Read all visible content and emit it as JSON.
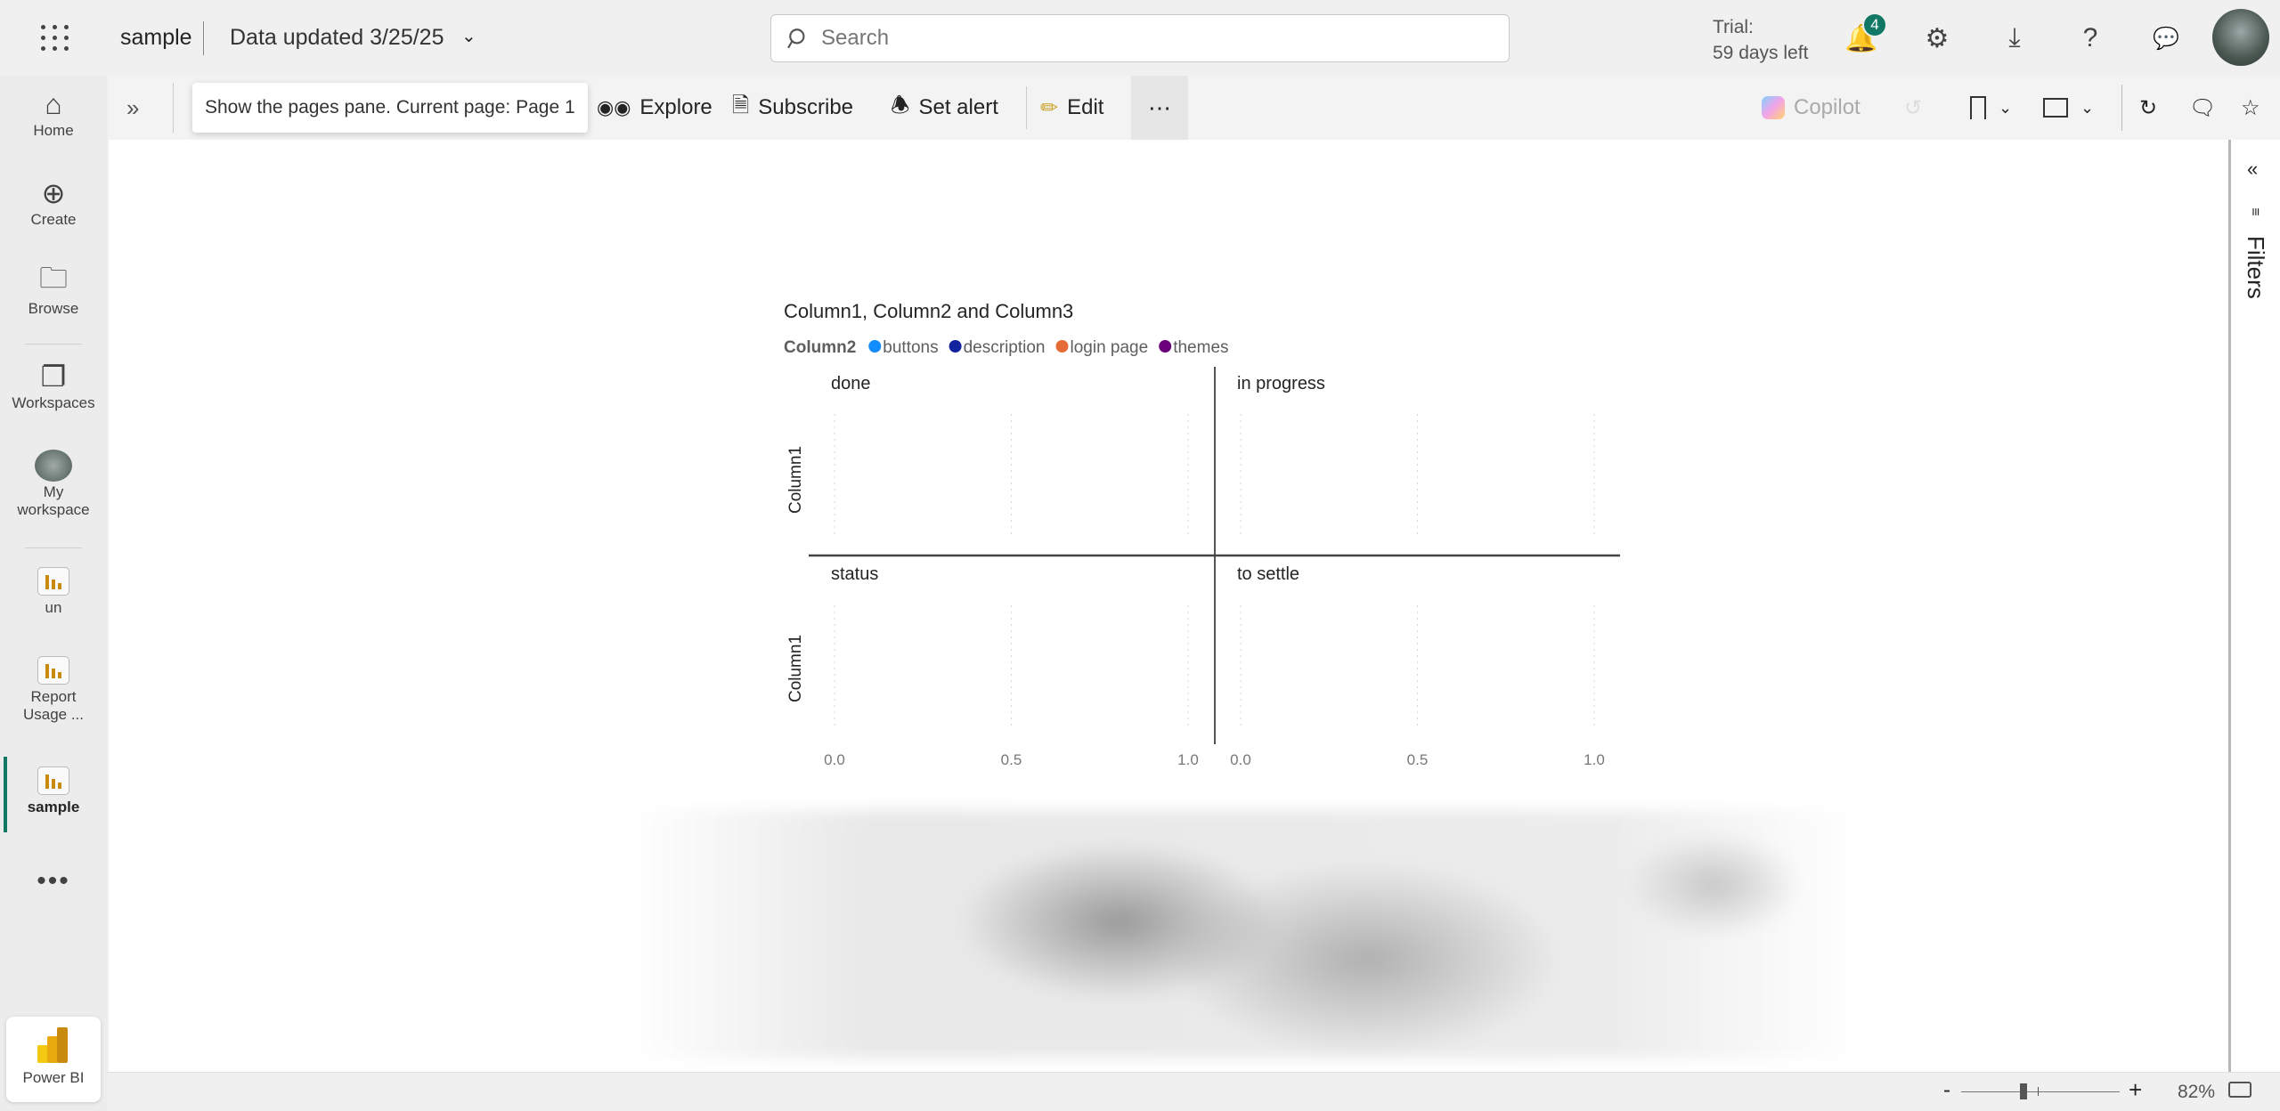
{
  "header": {
    "app_name": "sample",
    "data_updated": "Data updated 3/25/25",
    "search_placeholder": "Search",
    "trial_line1": "Trial:",
    "trial_line2": "59 days left",
    "notification_count": "4"
  },
  "sidebar": {
    "items": [
      {
        "label": "Home"
      },
      {
        "label": "Create"
      },
      {
        "label": "Browse"
      },
      {
        "label": "Workspaces"
      },
      {
        "label": "My workspace"
      },
      {
        "label": "un"
      },
      {
        "label": "Report Usage ..."
      },
      {
        "label": "sample"
      }
    ],
    "footer": "Power BI",
    "active": "sample"
  },
  "toolbar": {
    "tooltip": "Show the pages pane. Current page: Page 1",
    "explore": "Explore",
    "subscribe": "Subscribe",
    "set_alert": "Set alert",
    "edit": "Edit",
    "copilot": "Copilot"
  },
  "filters": {
    "label": "Filters"
  },
  "statusbar": {
    "zoom": "82%",
    "zoom_level": 82
  },
  "chart_data": {
    "type": "scatter",
    "title": "Column1, Column2 and Column3",
    "legend": {
      "title": "Column2",
      "position": "top-left",
      "entries": [
        {
          "name": "buttons",
          "color": "#118DFF"
        },
        {
          "name": "description",
          "color": "#12239E"
        },
        {
          "name": "login page",
          "color": "#E66C37"
        },
        {
          "name": "themes",
          "color": "#6B007B"
        }
      ]
    },
    "panels": [
      "done",
      "in progress",
      "status",
      "to settle"
    ],
    "ylabel": "Column1",
    "xticks": [
      "0.0",
      "0.5",
      "1.0"
    ],
    "xlim": [
      0,
      1
    ],
    "grid": true,
    "series": []
  }
}
